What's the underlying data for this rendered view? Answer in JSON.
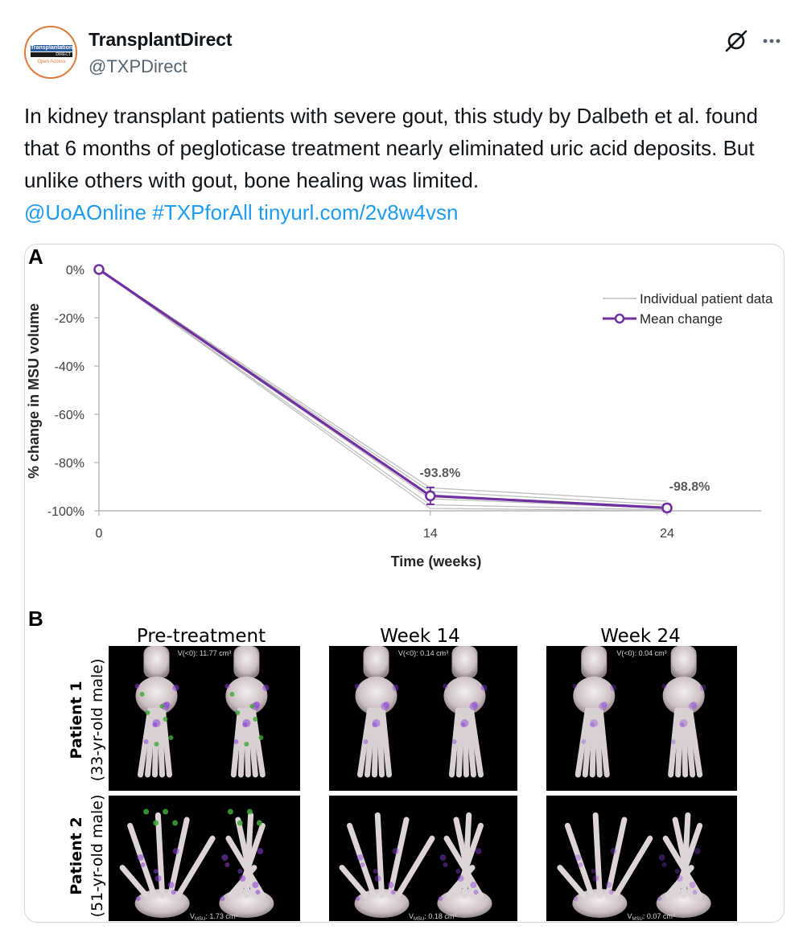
{
  "author": {
    "display_name": "TransplantDirect",
    "handle": "@TXPDirect",
    "avatar_logo_text": "Transplantation",
    "avatar_logo_sub": "DIRECT",
    "avatar_logo_oa": "Open Access"
  },
  "header_icons": [
    "grok-icon",
    "more-icon"
  ],
  "tweet": {
    "text": "In kidney transplant patients with severe gout, this study by Dalbeth et al. found that 6 months of pegloticase treatment nearly eliminated uric acid deposits. But unlike others with gout, bone healing was limited.",
    "mention": "@UoAOnline",
    "hashtag": "#TXPforAll",
    "url": "tinyurl.com/2v8w4vsn"
  },
  "figure": {
    "panel_a_letter": "A",
    "panel_b_letter": "B",
    "panel_b": {
      "columns": [
        "Pre-treatment",
        "Week 14",
        "Week 24"
      ],
      "rows": [
        {
          "label": "Patient 1",
          "sublabel": "(33-yr-old male)"
        },
        {
          "label": "Patient 2",
          "sublabel": "(51-yr-old male)"
        }
      ],
      "volumes_row1": [
        "V(<0): 11.77 cm³",
        "V(<0): 0.14 cm³",
        "V(<0): 0.04 cm³"
      ],
      "volumes_row2": [
        "V",
        "V",
        "V"
      ],
      "volumes_row2_sub": [
        "MSU",
        "MSU",
        "MSU"
      ],
      "volumes_row2_val": [
        ": 1.73 cm³",
        ": 0.18 cm³",
        ": 0.07 cm³"
      ]
    }
  },
  "chart_data": {
    "type": "line",
    "title": "",
    "xlabel": "Time (weeks)",
    "ylabel": "% change in MSU volume",
    "ylim": [
      -100,
      0
    ],
    "yticks": [
      "0%",
      "-20%",
      "-40%",
      "-60%",
      "-80%",
      "-100%"
    ],
    "yticks_values": [
      0,
      -20,
      -40,
      -60,
      -80,
      -100
    ],
    "xticks": [
      "0",
      "14",
      "24"
    ],
    "xticks_values": [
      0,
      14,
      24
    ],
    "grid": false,
    "legend_position": "top-right",
    "legend": [
      "Individual patient data",
      "Mean change"
    ],
    "series": [
      {
        "name": "Mean change",
        "x": [
          0,
          14,
          24
        ],
        "values": [
          0,
          -93.8,
          -98.8
        ],
        "error": [
          0,
          3.5,
          1.5
        ],
        "color": "#7030a0"
      },
      {
        "x": [
          0,
          14,
          24
        ],
        "values": [
          0,
          -90.5,
          -96.0
        ],
        "color": "#bfbfbf"
      },
      {
        "x": [
          0,
          14,
          24
        ],
        "values": [
          0,
          -92.0,
          -97.5
        ],
        "color": "#bfbfbf"
      },
      {
        "x": [
          0,
          14,
          24
        ],
        "values": [
          0,
          -95.0,
          -99.0
        ],
        "color": "#bfbfbf"
      },
      {
        "x": [
          0,
          14,
          24
        ],
        "values": [
          0,
          -97.5,
          -99.6
        ],
        "color": "#bfbfbf"
      },
      {
        "x": [
          0,
          14,
          24
        ],
        "values": [
          0,
          -99.0,
          -100.0
        ],
        "color": "#bfbfbf"
      }
    ],
    "data_labels": [
      "-93.8%",
      "-98.8%"
    ]
  },
  "colors": {
    "link": "#1d9bf0",
    "secondary_text": "#536471",
    "mean_line": "#7030a0",
    "individual_line": "#bfbfbf",
    "avatar_ring": "#e07a3a"
  }
}
